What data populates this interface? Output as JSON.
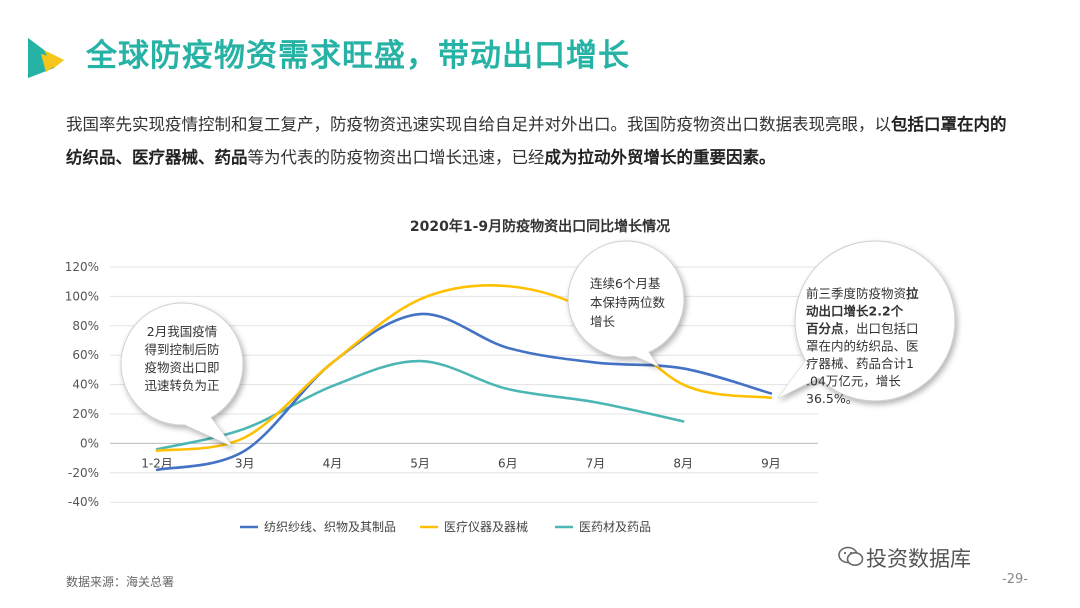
{
  "header": {
    "title": "全球防疫物资需求旺盛，带动出口增长"
  },
  "intro": {
    "p1": "我国率先实现疫情控制和复工复产，防疫物资迅速实现自给自足并对外出口。我国防疫物资出口数据表现亮眼，以",
    "b1": "包括口罩在内的纺织品、医疗器械、药品",
    "p2": "等为代表的防疫物资出口增长迅速，已经",
    "b2": "成为拉动外贸增长的重要因素。"
  },
  "colors": {
    "accent": "#26b3a6",
    "textile": "#4472c4",
    "medical": "#ffc000",
    "pharma": "#4bb6b4"
  },
  "chart_data": {
    "type": "line",
    "title": "2020年1-9月防疫物资出口同比增长情况",
    "categories": [
      "1-2月",
      "3月",
      "4月",
      "5月",
      "6月",
      "7月",
      "8月",
      "9月"
    ],
    "ylim": [
      -40,
      120
    ],
    "yticks": [
      "120%",
      "100%",
      "80%",
      "60%",
      "40%",
      "20%",
      "0%",
      "-20%",
      "-40%"
    ],
    "grid": true,
    "legend_position": "bottom",
    "series": [
      {
        "name": "纺织纱线、织物及其制品",
        "color": "#4472c4",
        "values": [
          -18,
          -5,
          55,
          88,
          65,
          55,
          51,
          34
        ]
      },
      {
        "name": "医疗仪器及器械",
        "color": "#ffc000",
        "values": [
          -5,
          4,
          55,
          98,
          107,
          88,
          40,
          31
        ]
      },
      {
        "name": "医药材及药品",
        "color": "#4bb6b4",
        "values": [
          -4,
          10,
          39,
          56,
          37,
          28,
          15,
          null
        ]
      }
    ],
    "annotations": [
      "2月我国疫情得到控制后防疫物资出口即迅速转负为正",
      "连续6个月基本保持两位数增长"
    ],
    "callout": {
      "a": "前三季度防疫物资",
      "b": "拉动出口增长2.2个百分点",
      "c": "，出口包括口罩在内的纺织品、医疗器械、药品合计1.04万亿元，增长36.5%。"
    }
  },
  "footer": {
    "source": "数据来源：海关总署",
    "brand": "投资数据库",
    "page": "-29-"
  }
}
